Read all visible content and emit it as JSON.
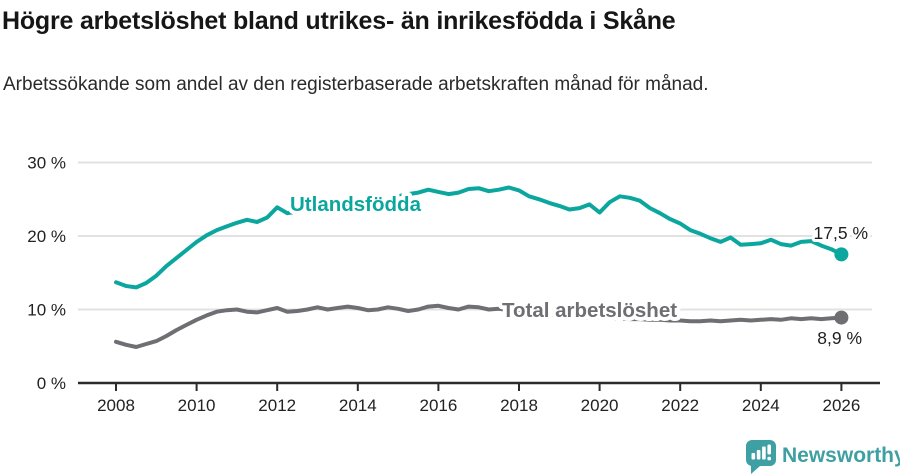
{
  "header": {
    "title": "Högre arbetslöshet bland utrikes- än inrikesfödda i Skåne",
    "subtitle": "Arbetssökande som andel av den registerbaserade arbetskraften månad för månad."
  },
  "colors": {
    "accent_teal": "#0ba79e",
    "line_gray": "#6e6e73",
    "grid": "#e2e2e2",
    "axis": "#2b2b2e",
    "text_dark": "#1f1f1f",
    "brand_teal": "#3fa0a3"
  },
  "chart_data": {
    "type": "line",
    "title": "Högre arbetslöshet bland utrikes- än inrikesfödda i Skåne",
    "subtitle": "Arbetssökande som andel av den registerbaserade arbetskraften månad för månad.",
    "x_unit": "year (monthly series, values estimated at quarterly resolution)",
    "y_unit": "percent",
    "xlim": [
      2007.3,
      2026.6
    ],
    "ylim": [
      0,
      30
    ],
    "grid": "horizontal",
    "legend": "inline-labels",
    "x": [
      2008,
      2008.25,
      2008.5,
      2008.75,
      2009,
      2009.25,
      2009.5,
      2009.75,
      2010,
      2010.25,
      2010.5,
      2010.75,
      2011,
      2011.25,
      2011.5,
      2011.75,
      2012,
      2012.25,
      2012.5,
      2012.75,
      2013,
      2013.25,
      2013.5,
      2013.75,
      2014,
      2014.25,
      2014.5,
      2014.75,
      2015,
      2015.25,
      2015.5,
      2015.75,
      2016,
      2016.25,
      2016.5,
      2016.75,
      2017,
      2017.25,
      2017.5,
      2017.75,
      2018,
      2018.25,
      2018.5,
      2018.75,
      2019,
      2019.25,
      2019.5,
      2019.75,
      2020,
      2020.25,
      2020.5,
      2020.75,
      2021,
      2021.25,
      2021.5,
      2021.75,
      2022,
      2022.25,
      2022.5,
      2022.75,
      2023,
      2023.25,
      2023.5,
      2023.75,
      2024,
      2024.25,
      2024.5,
      2024.75,
      2025,
      2025.25,
      2025.5,
      2025.75,
      2026
    ],
    "series": [
      {
        "name": "Utlandsfödda",
        "color": "#0ba79e",
        "end_value": 17.5,
        "end_label": "17,5 %",
        "values": [
          13.7,
          13.2,
          13.0,
          13.6,
          14.6,
          15.9,
          17.0,
          18.1,
          19.2,
          20.1,
          20.8,
          21.3,
          21.8,
          22.2,
          21.9,
          22.5,
          23.9,
          23.1,
          23.3,
          23.5,
          23.6,
          23.7,
          23.9,
          24.1,
          24.3,
          24.5,
          24.8,
          25.1,
          25.4,
          25.7,
          25.9,
          26.3,
          26.0,
          25.7,
          25.9,
          26.4,
          26.5,
          26.1,
          26.3,
          26.6,
          26.2,
          25.4,
          25.0,
          24.5,
          24.1,
          23.6,
          23.8,
          24.3,
          23.2,
          24.6,
          25.4,
          25.2,
          24.8,
          23.8,
          23.1,
          22.3,
          21.7,
          20.8,
          20.3,
          19.7,
          19.2,
          19.8,
          18.8,
          18.9,
          19.0,
          19.5,
          18.9,
          18.7,
          19.2,
          19.3,
          18.7,
          18.2,
          17.5
        ]
      },
      {
        "name": "Total arbetslöshet",
        "color": "#6e6e73",
        "end_value": 8.9,
        "end_label": "8,9 %",
        "values": [
          5.6,
          5.2,
          4.9,
          5.3,
          5.7,
          6.4,
          7.2,
          7.9,
          8.6,
          9.2,
          9.7,
          9.9,
          10.0,
          9.7,
          9.6,
          9.9,
          10.2,
          9.7,
          9.8,
          10.0,
          10.3,
          10.0,
          10.2,
          10.4,
          10.2,
          9.9,
          10.0,
          10.3,
          10.1,
          9.8,
          10.0,
          10.4,
          10.5,
          10.2,
          10.0,
          10.4,
          10.3,
          10.0,
          10.1,
          9.9,
          9.7,
          9.5,
          9.4,
          9.3,
          9.2,
          9.1,
          9.0,
          8.9,
          8.9,
          8.8,
          8.8,
          8.7,
          8.7,
          8.6,
          8.6,
          8.5,
          8.5,
          8.4,
          8.4,
          8.5,
          8.4,
          8.5,
          8.6,
          8.5,
          8.6,
          8.7,
          8.6,
          8.8,
          8.7,
          8.8,
          8.7,
          8.8,
          8.9
        ]
      }
    ],
    "yticks": [
      {
        "value": 0,
        "label": "0 %"
      },
      {
        "value": 10,
        "label": "10 %"
      },
      {
        "value": 20,
        "label": "20 %"
      },
      {
        "value": 30,
        "label": "30 %"
      }
    ],
    "xticks": [
      {
        "value": 2008,
        "label": "2008"
      },
      {
        "value": 2010,
        "label": "2010"
      },
      {
        "value": 2012,
        "label": "2012"
      },
      {
        "value": 2014,
        "label": "2014"
      },
      {
        "value": 2016,
        "label": "2016"
      },
      {
        "value": 2018,
        "label": "2018"
      },
      {
        "value": 2020,
        "label": "2020"
      },
      {
        "value": 2022,
        "label": "2022"
      },
      {
        "value": 2024,
        "label": "2024"
      },
      {
        "value": 2026,
        "label": "2026"
      }
    ]
  },
  "footer": {
    "brand": "Newsworthy"
  }
}
